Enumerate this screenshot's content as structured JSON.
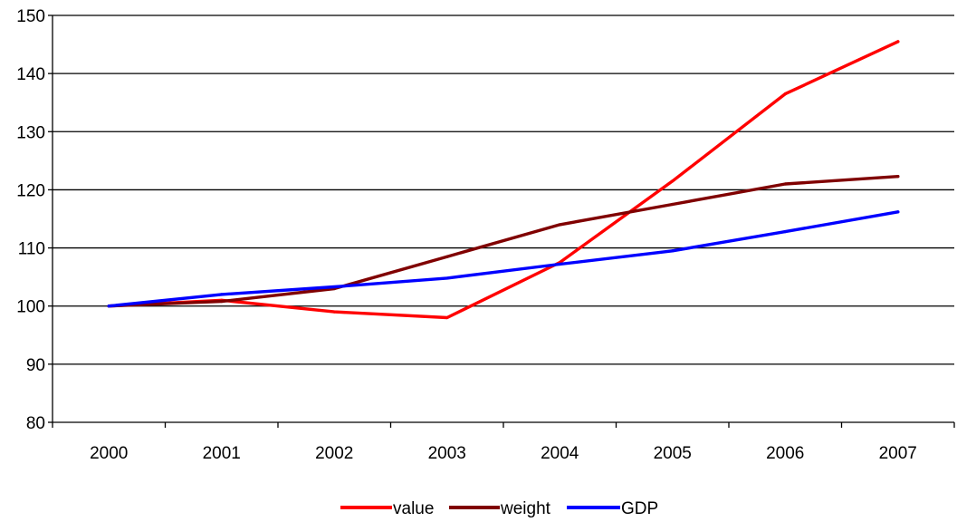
{
  "chart_data": {
    "type": "line",
    "title": "",
    "xlabel": "",
    "ylabel": "",
    "categories": [
      "2000",
      "2001",
      "2002",
      "2003",
      "2004",
      "2005",
      "2006",
      "2007"
    ],
    "ylim": [
      80,
      150
    ],
    "yticks": [
      80,
      90,
      100,
      110,
      120,
      130,
      140,
      150
    ],
    "grid": true,
    "legend_position": "bottom",
    "series": [
      {
        "name": "value",
        "color": "#ff0000",
        "values": [
          100,
          101,
          99,
          98,
          107.5,
          121.5,
          136.5,
          145.5
        ]
      },
      {
        "name": "weight",
        "color": "#800000",
        "values": [
          100,
          100.8,
          103,
          108.5,
          114,
          117.5,
          121,
          122.3
        ]
      },
      {
        "name": "GDP",
        "color": "#0000ff",
        "values": [
          100,
          102,
          103.3,
          104.8,
          107.2,
          109.5,
          112.8,
          116.2
        ]
      }
    ]
  }
}
